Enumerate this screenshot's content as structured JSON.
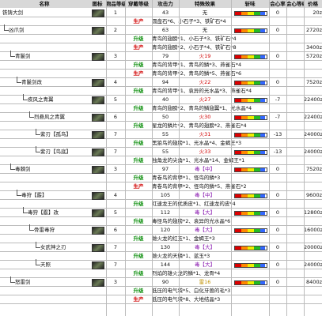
{
  "header": {
    "columns": [
      "名称",
      "图标",
      "物品等级",
      "穿戴等级",
      "攻击力",
      "特殊效果",
      "斩味",
      "会心率",
      "会心等级",
      "价格"
    ]
  },
  "weapons": [
    {
      "name": "铁铸大剑",
      "level": "1",
      "attack": "43",
      "effect": "无",
      "crit": "0",
      "price": "20z",
      "recipes": [
        {
          "kind": "生产",
          "kind_color": "#d00000",
          "materials": "圆盘石*6、小石子*3、铁矿石*4"
        }
      ],
      "children": [
        {
          "name": "凶爪剑",
          "level": "2",
          "attack": "63",
          "effect": "无",
          "crit": "0",
          "price": "2720z",
          "recipes": [
            {
              "kind": "升级",
              "kind_color": "#109010",
              "materials": "青鸟的翅膀*1、小石子*3、铁矿石*4"
            },
            {
              "kind": "生产",
              "kind_color": "#d00000",
              "materials": "青鸟的翅膀*2、小石子*4、铁矿石*8",
              "price": "3400z"
            }
          ],
          "children": [
            {
              "name": "青鬣剑",
              "level": "3",
              "attack": "79",
              "effect": "火19",
              "effect_color": "#d00000",
              "crit": "0",
              "price": "5720z",
              "recipes": [
                {
                  "kind": "升级",
                  "kind_color": "#109010",
                  "materials": "青鸟的背甲*1、青鸟的鳞*3、燕雀石*4"
                },
                {
                  "kind": "生产",
                  "kind_color": "#d00000",
                  "materials": "青鸟的背甲*2、青鸟的鳞*5、燕雀石*6"
                }
              ],
              "children": [
                {
                  "name": "青鬣剑改",
                  "level": "4",
                  "attack": "94",
                  "effect": "火22",
                  "effect_color": "#d00000",
                  "crit": "0",
                  "price": "7520z",
                  "recipes": [
                    {
                      "kind": "升级",
                      "kind_color": "#109010",
                      "materials": "青鸟的背甲*1、袁异的光水晶*3、燕雀石*4"
                    }
                  ],
                  "children": [
                    {
                      "name": "疾风之青翼",
                      "level": "5",
                      "attack": "40",
                      "effect": "火27",
                      "effect_color": "#d00000",
                      "crit": "-7",
                      "price": "22400z",
                      "recipes": [
                        {
                          "kind": "升级",
                          "kind_color": "#109010",
                          "materials": "青鸟的翅膀*2、青鸟的鳞翅翼*1、光水晶*4"
                        }
                      ],
                      "children": [
                        {
                          "name": "烈悬风之青翼",
                          "level": "6",
                          "attack": "50",
                          "effect": "火30",
                          "effect_color": "#d00000",
                          "crit": "-7",
                          "price": "22400z",
                          "recipes": [
                            {
                              "kind": "升级",
                              "kind_color": "#109010",
                              "materials": "星龙的鳞片*2、青鸟的翅膀*2、燕雀石*4"
                            }
                          ],
                          "children": [
                            {
                              "name": "紫刃【孤鸟】",
                              "level": "7",
                              "attack": "55",
                              "effect": "火31",
                              "effect_color": "#d00000",
                              "crit": "-13",
                              "price": "24000z",
                              "recipes": [
                                {
                                  "kind": "升级",
                                  "kind_color": "#109010",
                                  "materials": "黑狼鸟的翅膀*1、光水晶*4、金蝎王*3"
                                }
                              ]
                            },
                            {
                              "name": "紫刃【鸟底】",
                              "level": "7",
                              "attack": "55",
                              "effect": "火33",
                              "effect_color": "#d00000",
                              "crit": "-13",
                              "price": "24000z",
                              "recipes": [
                                {
                                  "kind": "升级",
                                  "kind_color": "#109010",
                                  "materials": "独角龙的尖角*1、光水晶*14、金蝎王*1"
                                }
                              ]
                            }
                          ]
                        }
                      ]
                    }
                  ]
                }
              ]
            },
            {
              "name": "毒棘剑",
              "level": "3",
              "attack": "97",
              "effect": "毒【中】",
              "effect_color": "#8a1ab0",
              "crit": "0",
              "price": "7520z",
              "recipes": [
                {
                  "kind": "升级",
                  "kind_color": "#109010",
                  "materials": "青卷鸟的背甲*1、怪鸟的鳞*3"
                },
                {
                  "kind": "生产",
                  "kind_color": "#d00000",
                  "materials": "青卷鸟的背甲*2、怪鸟的鳞*5、燕雀石*2"
                }
              ],
              "children": [
                {
                  "name": "毒狩【霰】",
                  "level": "4",
                  "attack": "105",
                  "effect": "毒【中】",
                  "effect_color": "#8a1ab0",
                  "crit": "0",
                  "price": "9600z",
                  "recipes": [
                    {
                      "kind": "升级",
                      "kind_color": "#109010",
                      "materials": "红速龙王的优质皮*1、红速龙的皮*4"
                    }
                  ],
                  "children": [
                    {
                      "name": "毒狩【霰】改",
                      "level": "5",
                      "attack": "112",
                      "effect": "毒【大】",
                      "effect_color": "#8a1ab0",
                      "crit": "0",
                      "price": "12800z",
                      "recipes": [
                        {
                          "kind": "升级",
                          "kind_color": "#109010",
                          "materials": "毒怪鸟的翅膀*2、袁异的光水晶*6"
                        }
                      ],
                      "children": [
                        {
                          "name": "骨雷毒狩",
                          "level": "6",
                          "attack": "120",
                          "effect": "毒【大】",
                          "effect_color": "#8a1ab0",
                          "crit": "0",
                          "price": "16000z",
                          "recipes": [
                            {
                              "kind": "升级",
                              "kind_color": "#109010",
                              "materials": "雌火龙的红玉*1、金蝎王*3"
                            }
                          ],
                          "children": [
                            {
                              "name": "女武神之刃",
                              "level": "7",
                              "attack": "130",
                              "effect": "毒【大】",
                              "effect_color": "#8a1ab0",
                              "crit": "0",
                              "price": "20000z",
                              "recipes": [
                                {
                                  "kind": "升级",
                                  "kind_color": "#109010",
                                  "materials": "雌火龙的天鳞*1、蓝玉*3"
                                }
                              ]
                            },
                            {
                              "name": "天照",
                              "level": "7",
                              "attack": "144",
                              "effect": "毒【大】",
                              "effect_color": "#8a1ab0",
                              "crit": "0",
                              "price": "24000z",
                              "recipes": [
                                {
                                  "kind": "升级",
                                  "kind_color": "#109010",
                                  "materials": "烈焰的雄火龙的鳞*1、龙骨*4"
                                }
                              ]
                            }
                          ]
                        }
                      ]
                    }
                  ]
                }
              ]
            },
            {
              "name": "怒雷剑",
              "level": "3",
              "attack": "90",
              "effect": "雷16",
              "effect_color": "#c09000",
              "crit": "0",
              "price": "8400z",
              "recipes": [
                {
                  "kind": "升级",
                  "kind_color": "#109010",
                  "materials": "低压的电气袋*5、白化牙兽的毛*3"
                },
                {
                  "kind": "生产",
                  "kind_color": "#d00000",
                  "materials": "低压的电气袋*8、大地结晶*3"
                }
              ]
            }
          ]
        }
      ]
    }
  ]
}
